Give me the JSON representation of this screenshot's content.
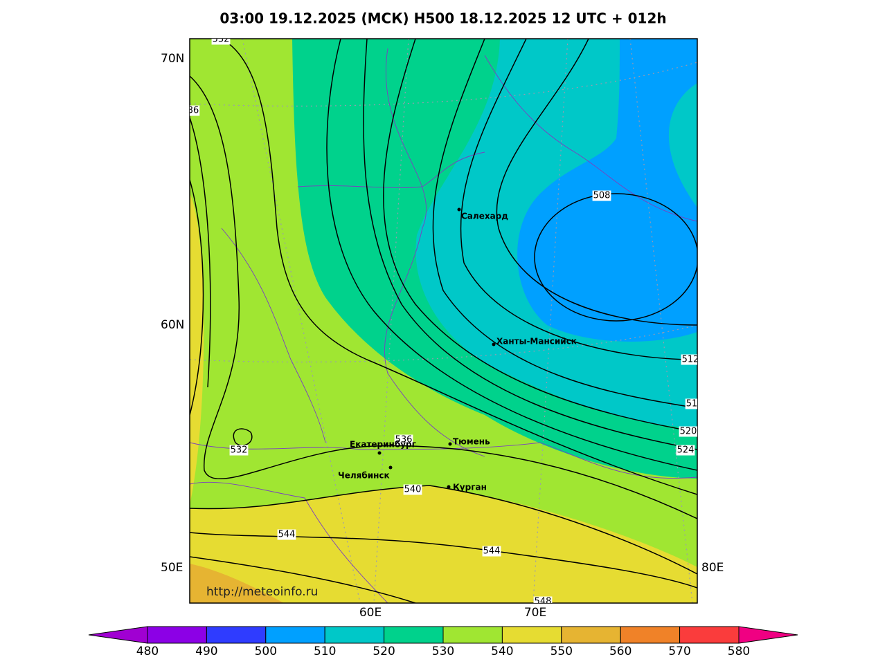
{
  "header": {
    "title": "03:00 19.12.2025 (МСК) H500  18.12.2025 12 UTC + 012h"
  },
  "map": {
    "lat_labels": [
      "70N",
      "60N"
    ],
    "lon_labels": [
      "50E",
      "80E",
      "60E",
      "70E"
    ],
    "contour_labels": [
      "532",
      "36",
      "508",
      "512",
      "51",
      "520",
      "524",
      "536",
      "532",
      "540",
      "544",
      "544",
      "548"
    ],
    "cities": [
      "Салехард",
      "Ханты-Мансийск",
      "Екатеринбург",
      "Тюмень",
      "Челябинск",
      "Курган"
    ],
    "watermark": "http://meteoinfo.ru"
  },
  "colorbar": {
    "ticks": [
      480,
      490,
      500,
      510,
      520,
      530,
      540,
      550,
      560,
      570,
      580
    ],
    "colors": [
      "#a000d2",
      "#8c00e6",
      "#2f3cff",
      "#00a0ff",
      "#00c8c8",
      "#00d28c",
      "#a0e632",
      "#e6dc32",
      "#e6b432",
      "#f08228",
      "#fa3c3c",
      "#f00082"
    ]
  }
}
